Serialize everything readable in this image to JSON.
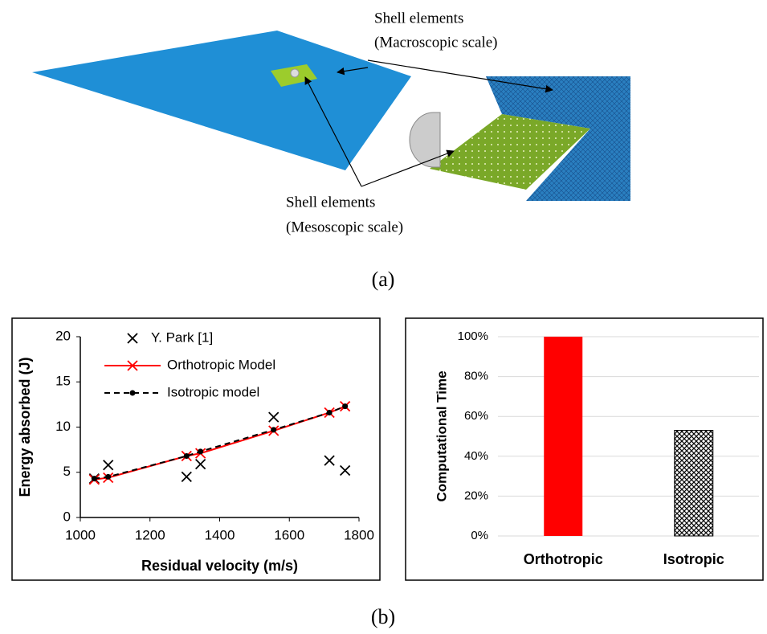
{
  "figure": {
    "labels": {
      "macro_title": "Shell elements",
      "macro_scale": "(Macroscopic scale)",
      "meso_title": "Shell elements",
      "meso_scale": "(Mesoscopic scale)"
    },
    "captions": {
      "a": "(a)",
      "b": "(b)"
    }
  },
  "chart_data": [
    {
      "type": "scatter",
      "x_label": "Residual velocity (m/s)",
      "y_label": "Energy absorbed (J)",
      "x": [
        1040,
        1080,
        1305,
        1345,
        1555,
        1715,
        1760
      ],
      "series": [
        {
          "name": "Y. Park [1]",
          "color": "#000000",
          "marker": "x",
          "linestyle": "none",
          "values": [
            4.3,
            5.8,
            4.5,
            5.9,
            11.1,
            6.3,
            5.2
          ]
        },
        {
          "name": "Orthotropic Model",
          "color": "#ff0000",
          "marker": "x",
          "linestyle": "solid",
          "values": [
            4.2,
            4.4,
            6.8,
            7.1,
            9.6,
            11.6,
            12.3
          ]
        },
        {
          "name": "Isotropic model",
          "color": "#000000",
          "marker": "dot",
          "linestyle": "dashed",
          "values": [
            4.3,
            4.5,
            6.8,
            7.3,
            9.7,
            11.6,
            12.3
          ]
        }
      ],
      "xlim": [
        1000,
        1800
      ],
      "xticks": [
        1000,
        1200,
        1400,
        1600,
        1800
      ],
      "ylim": [
        0,
        20
      ],
      "yticks": [
        0,
        5,
        10,
        15,
        20
      ],
      "legend": "upper left",
      "grid": false
    },
    {
      "type": "bar",
      "y_label": "Computational Time",
      "categories": [
        "Orthotropic",
        "Isotropic"
      ],
      "values": [
        100,
        53
      ],
      "colors": [
        "#ff0000",
        "#000000"
      ],
      "patterns": [
        "solid",
        "crosshatch"
      ],
      "ylim": [
        0,
        100
      ],
      "yticks": [
        {
          "value": 0,
          "label": "0%"
        },
        {
          "value": 20,
          "label": "20%"
        },
        {
          "value": 40,
          "label": "40%"
        },
        {
          "value": 60,
          "label": "60%"
        },
        {
          "value": 80,
          "label": "80%"
        },
        {
          "value": 100,
          "label": "100%"
        }
      ],
      "grid": true
    }
  ]
}
